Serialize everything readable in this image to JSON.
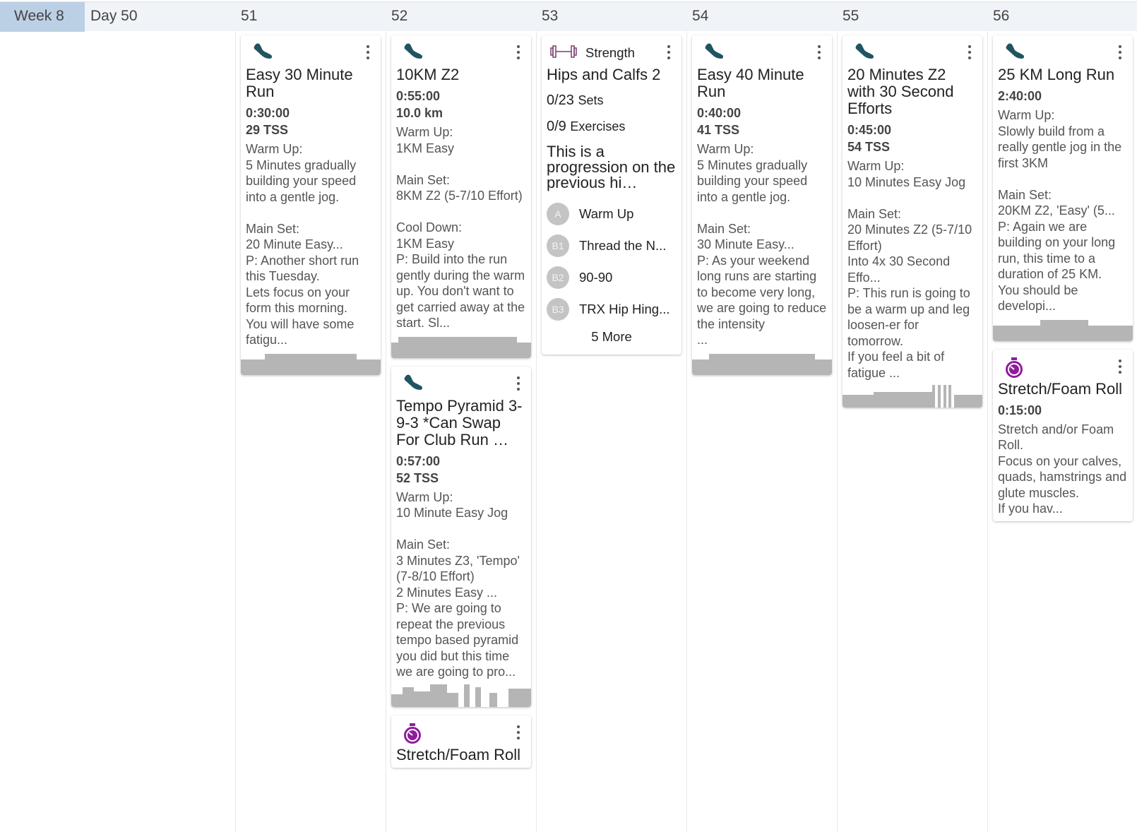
{
  "header": {
    "week": "Week 8",
    "day": "Day 50",
    "days": [
      "51",
      "52",
      "53",
      "54",
      "55",
      "56"
    ]
  },
  "colors": {
    "run": "#1f5561",
    "stretch": "#8e1d9c",
    "strength": "#7a3c6e",
    "bar": "#b5b5b5"
  },
  "cols": [
    {
      "cards": [
        {
          "type": "run",
          "icon": "running-shoe-icon",
          "title": "Easy 30 Minute Run",
          "l1": "0:30:00",
          "l2": "29 TSS",
          "desc": "Warm Up:\n5 Minutes gradually building your speed into a gentle jog.\n\nMain Set:\n20 Minute Easy...\nP: Another short run this Tuesday.\nLets focus on your form this morning.\nYou will have some fatigu..."
        }
      ]
    },
    {
      "cards": [
        {
          "type": "run",
          "icon": "running-shoe-icon",
          "title": "10KM Z2",
          "l1": "0:55:00",
          "l2": "10.0 km",
          "desc": "Warm Up:\n1KM Easy\n\nMain Set:\n8KM Z2 (5-7/10 Effort)\n\nCool Down:\n1KM Easy\nP: Build into the run gently during the warm up. You don't want to get carried away at the start. Sl..."
        },
        {
          "type": "run",
          "icon": "running-shoe-icon",
          "title": "Tempo Pyramid 3-9-3 *Can Swap For Club Run …",
          "l1": "0:57:00",
          "l2": "52 TSS",
          "desc": "Warm Up:\n10 Minute Easy Jog\n\nMain Set:\n3 Minutes Z3, 'Tempo' (7-8/10 Effort)\n2 Minutes Easy ...\nP: We are going to repeat the previous tempo based pyramid you did but this time we are going to pro..."
        },
        {
          "type": "stretch",
          "icon": "stopwatch-icon",
          "title": "Stretch/Foam Roll"
        }
      ]
    },
    {
      "cards": [
        {
          "type": "strength",
          "icon": "dumbbell-icon",
          "label": "Strength",
          "title": "Hips and Calfs 2",
          "sets": "0/23",
          "sets_label": "Sets",
          "exercises": "0/9",
          "exercises_label": "Exercises",
          "desc": "This is a progression on the previous hi…",
          "items": [
            {
              "badge": "A",
              "name": "Warm Up"
            },
            {
              "badge": "B1",
              "name": "Thread the N..."
            },
            {
              "badge": "B2",
              "name": "90-90"
            },
            {
              "badge": "B3",
              "name": "TRX Hip Hing..."
            }
          ],
          "more": "5 More"
        }
      ]
    },
    {
      "cards": [
        {
          "type": "run",
          "icon": "running-shoe-icon",
          "title": "Easy 40 Minute Run",
          "l1": "0:40:00",
          "l2": "41 TSS",
          "desc": "Warm Up:\n5 Minutes gradually building your speed into a gentle jog.\n\nMain Set:\n30 Minute Easy...\nP: As your weekend long runs are starting to become very long, we are going to reduce the intensity\n..."
        }
      ]
    },
    {
      "cards": [
        {
          "type": "run",
          "icon": "running-shoe-icon",
          "title": "20 Minutes Z2 with 30 Second Efforts",
          "l1": "0:45:00",
          "l2": "54 TSS",
          "desc": "Warm Up:\n10 Minutes Easy Jog\n\nMain Set:\n20 Minutes Z2 (5-7/10 Effort)\nInto 4x 30 Second Effo...\nP: This run is going to be a warm up and leg loosen-er for tomorrow.\nIf you feel a bit of fatigue ..."
        }
      ]
    },
    {
      "cards": [
        {
          "type": "run",
          "icon": "running-shoe-icon",
          "title": "25 KM Long Run",
          "l1": "2:40:00",
          "desc": "Warm Up:\nSlowly build from a really gentle jog in the first 3KM\n\nMain Set:\n20KM Z2, 'Easy' (5...\nP: Again we are building on your long run, this time to a duration of 25 KM.\nYou should be developi..."
        },
        {
          "type": "stretch",
          "icon": "stopwatch-icon",
          "title": "Stretch/Foam Roll",
          "l1": "0:15:00",
          "desc": "Stretch and/or Foam Roll.\nFocus on your calves, quads, hamstrings and glute muscles.\nIf you hav..."
        }
      ]
    }
  ]
}
